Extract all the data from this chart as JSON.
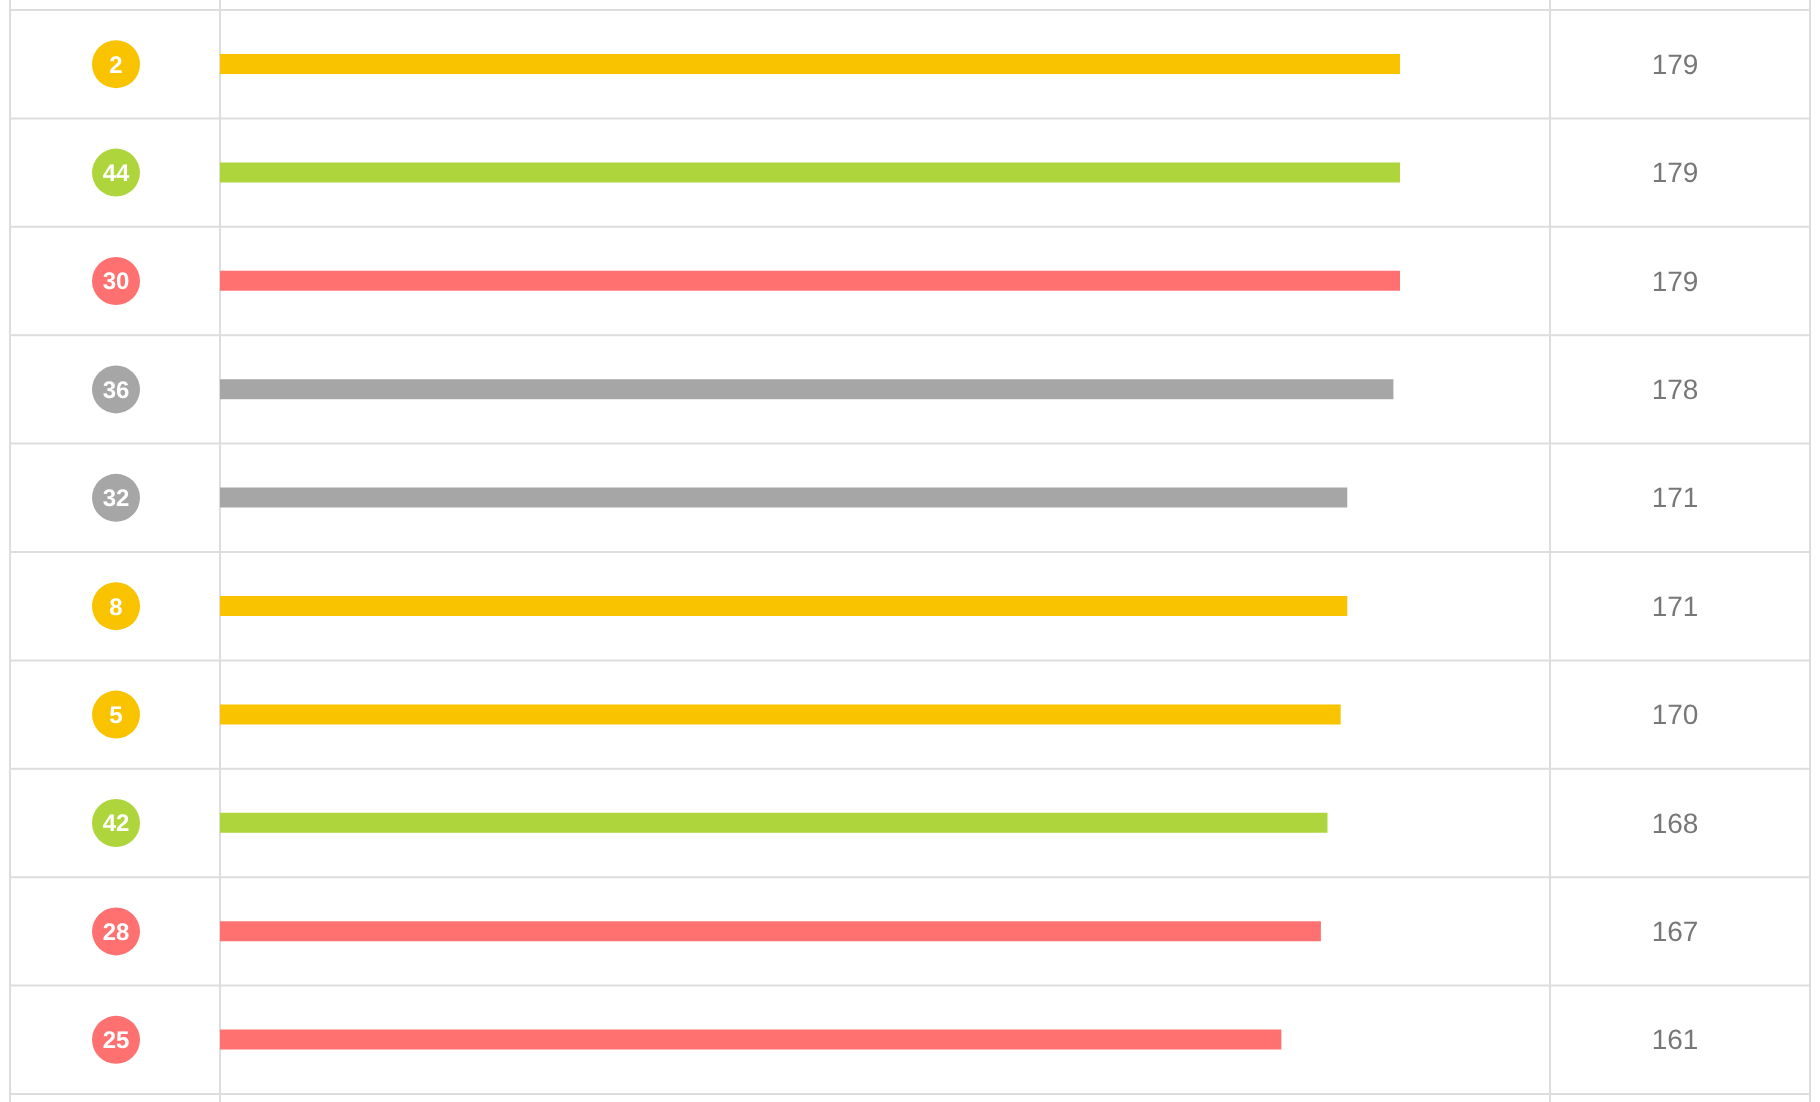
{
  "chart_data": {
    "type": "bar",
    "orientation": "horizontal",
    "categories": [
      "2",
      "44",
      "30",
      "36",
      "32",
      "8",
      "5",
      "42",
      "28",
      "25"
    ],
    "values": [
      179,
      179,
      179,
      178,
      171,
      171,
      170,
      168,
      167,
      161
    ],
    "colors": [
      "#f9c300",
      "#aed53b",
      "#ff7171",
      "#a6a6a6",
      "#a6a6a6",
      "#f9c300",
      "#f9c300",
      "#aed53b",
      "#ff7171",
      "#ff7171"
    ],
    "data_labels": true,
    "grid": true
  }
}
